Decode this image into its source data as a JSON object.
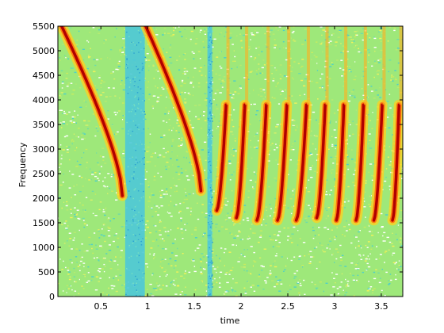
{
  "chart_data": {
    "type": "heatmap",
    "subtype": "spectrogram",
    "xlabel": "time",
    "ylabel": "Frequency",
    "xlim": [
      0.04,
      3.73
    ],
    "ylim": [
      0,
      5500
    ],
    "xticks": [
      0.5,
      1,
      1.5,
      2,
      2.5,
      3,
      3.5
    ],
    "xtick_labels": [
      "0.5",
      "1",
      "1.5",
      "2",
      "2.5",
      "3",
      "3.5"
    ],
    "yticks": [
      0,
      500,
      1000,
      1500,
      2000,
      2500,
      3000,
      3500,
      4000,
      4500,
      5000,
      5500
    ],
    "ytick_labels": [
      "0",
      "500",
      "1000",
      "1500",
      "2000",
      "2500",
      "3000",
      "3500",
      "4000",
      "4500",
      "5000",
      "5500"
    ],
    "colormap": "jet",
    "background_color": "#9ee87a",
    "quiet_bands": [
      {
        "t0": 0.76,
        "t1": 0.97
      },
      {
        "t0": 1.64,
        "t1": 1.69
      }
    ],
    "chirps": [
      {
        "kind": "downsweep",
        "t_start": 0.08,
        "t_end": 0.73,
        "f_start": 5500,
        "f_end": 2050
      },
      {
        "kind": "downsweep",
        "t_start": 0.98,
        "t_end": 1.57,
        "f_start": 5500,
        "f_end": 2150
      },
      {
        "kind": "upsweep",
        "t_start": 1.74,
        "t_end": 1.84,
        "f_start": 1750,
        "f_end": 3900
      },
      {
        "kind": "upsweep",
        "t_start": 1.95,
        "t_end": 2.04,
        "f_start": 1600,
        "f_end": 3900
      },
      {
        "kind": "upsweep",
        "t_start": 2.17,
        "t_end": 2.27,
        "f_start": 1550,
        "f_end": 3900
      },
      {
        "kind": "upsweep",
        "t_start": 2.39,
        "t_end": 2.49,
        "f_start": 1550,
        "f_end": 3900
      },
      {
        "kind": "upsweep",
        "t_start": 2.59,
        "t_end": 2.7,
        "f_start": 1550,
        "f_end": 3900
      },
      {
        "kind": "upsweep",
        "t_start": 2.81,
        "t_end": 2.9,
        "f_start": 1600,
        "f_end": 3900
      },
      {
        "kind": "upsweep",
        "t_start": 3.02,
        "t_end": 3.1,
        "f_start": 1550,
        "f_end": 3900
      },
      {
        "kind": "upsweep",
        "t_start": 3.23,
        "t_end": 3.31,
        "f_start": 1550,
        "f_end": 3900
      },
      {
        "kind": "upsweep",
        "t_start": 3.42,
        "t_end": 3.51,
        "f_start": 1550,
        "f_end": 3900
      },
      {
        "kind": "upsweep",
        "t_start": 3.62,
        "t_end": 3.69,
        "f_start": 1550,
        "f_end": 3900
      }
    ]
  }
}
